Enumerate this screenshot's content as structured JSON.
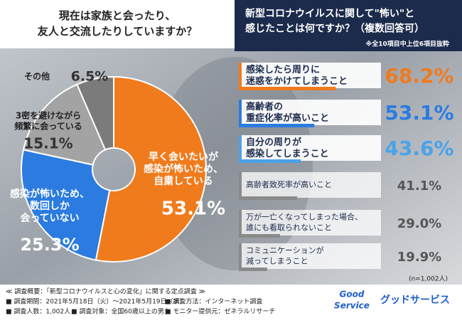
{
  "chart_data": [
    {
      "type": "pie",
      "title": "現在は家族と会ったり、\n友人と交流したりしていますか？",
      "categories": [
        "早く会いたいが\n感染が怖いため、\n自粛している",
        "感染が怖いため、\n数回しか\n会っていない",
        "3密を避けながら\n頻繁に会っている",
        "その他"
      ],
      "values": [
        53.1,
        25.3,
        15.1,
        6.5
      ],
      "value_labels": [
        "53.1%",
        "25.3%",
        "15.1%",
        "6.5%"
      ],
      "colors": [
        "#f07b1d",
        "#2b7be0",
        "#a3a3a3",
        "#7b7b7b"
      ]
    },
    {
      "type": "hbar",
      "title": "新型コロナウイルスに関して\"怖い\"と\n感じたことは何ですか？（複数回答可）",
      "subtitle": "※全10項目中上位6項目抜粋",
      "note": "(n=1,002人)",
      "categories": [
        "感染したら周りに\n迷惑をかけてしまうこと",
        "高齢者の\n重症化率が高いこと",
        "自分の周りが\n感染してしまうこと",
        "高齢者致死率が高いこと",
        "万が一亡くなってしまった場合、\n誰にも看取られないこと",
        "コミュニケーションが\n減ってしまうこと"
      ],
      "values": [
        68.2,
        53.1,
        43.6,
        41.1,
        29.0,
        19.9
      ],
      "value_labels": [
        "68.2%",
        "53.1%",
        "43.6%",
        "41.1%",
        "29.0%",
        "19.9%"
      ],
      "colors": [
        "#f07b1d",
        "#2b7be0",
        "#4aa3e8",
        "#8a8a8a",
        "#8a8a8a",
        "#8a8a8a"
      ],
      "xlim": [
        0,
        100
      ]
    }
  ],
  "footer": {
    "heading": "≪ 調査概要：「新型コロナウイルスと心の変化」に関する定点調査 ≫",
    "items": [
      "■ 調査期間：2021年5月18日（火）〜2021年5月19日（水）",
      "■ 調査方法：インターネット調査",
      "■ 調査人数：1,002人",
      "■ 調査対象：全国60歳以上の男女",
      "■ モニター提供元：ゼネラルリサーチ"
    ],
    "logo": [
      "Good",
      "Service",
      "グッドサービス"
    ]
  }
}
